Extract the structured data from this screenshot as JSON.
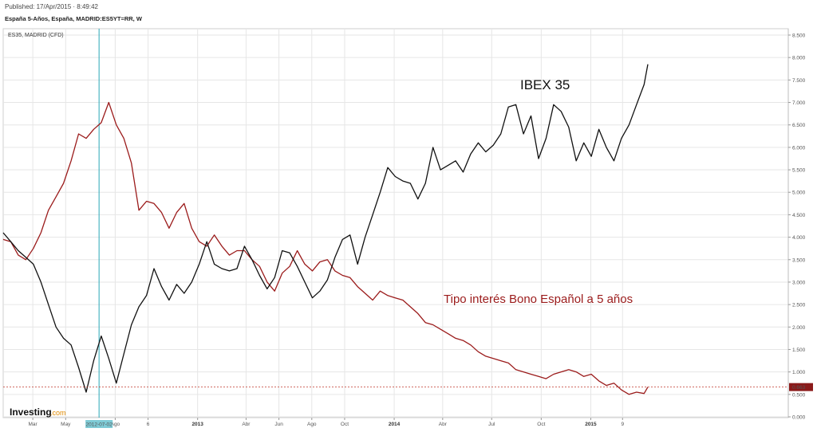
{
  "header": {
    "published": "Published: 17/Apr/2015 · 8:49:42",
    "instrument": "España 5-Años, España, MADRID:ES5YT=RR, W"
  },
  "overlay_label": "ES35, MADRID (CFD)",
  "brand": {
    "name": "Investing",
    "suffix": ".com"
  },
  "colors": {
    "ibex": "#111111",
    "bond": "#9b1b1b",
    "crosshair": "#29a8b8",
    "current_line": "#c0392b",
    "grid": "#e6e6e6"
  },
  "chart_data": {
    "type": "line",
    "y_axis": {
      "min": 0,
      "max": 8.5,
      "ticks": [
        0,
        0.5,
        1,
        1.5,
        2,
        2.5,
        3,
        3.5,
        4,
        4.5,
        5,
        5.5,
        6,
        6.5,
        7,
        7.5,
        8,
        8.5
      ],
      "tick_labels": [
        "0.000",
        "0.500",
        "1.000",
        "1.500",
        "2.000",
        "2.500",
        "3.000",
        "3.500",
        "4.000",
        "4.500",
        "5.000",
        "5.500",
        "6.000",
        "6.500",
        "7.000",
        "7.500",
        "8.000",
        "8.500"
      ]
    },
    "x_axis": {
      "range": [
        "2012-01-06",
        "2015-04-17"
      ],
      "ticks": [
        {
          "date": "2012-03-01",
          "label": "Mar",
          "bold": false
        },
        {
          "date": "2012-05-01",
          "label": "May",
          "bold": false
        },
        {
          "date": "2012-08-01",
          "label": "Ago",
          "bold": false
        },
        {
          "date": "2012-10-01",
          "label": "6",
          "bold": false
        },
        {
          "date": "2013-01-01",
          "label": "2013",
          "bold": true
        },
        {
          "date": "2013-04-01",
          "label": "Abr",
          "bold": false
        },
        {
          "date": "2013-06-01",
          "label": "Jun",
          "bold": false
        },
        {
          "date": "2013-08-01",
          "label": "Ago",
          "bold": false
        },
        {
          "date": "2013-10-01",
          "label": "Oct",
          "bold": false
        },
        {
          "date": "2014-01-01",
          "label": "2014",
          "bold": true
        },
        {
          "date": "2014-04-01",
          "label": "Abr",
          "bold": false
        },
        {
          "date": "2014-07-01",
          "label": "Jul",
          "bold": false
        },
        {
          "date": "2014-10-01",
          "label": "Oct",
          "bold": false
        },
        {
          "date": "2015-01-01",
          "label": "2015",
          "bold": true
        },
        {
          "date": "2015-03-01",
          "label": "9",
          "bold": false
        }
      ]
    },
    "grid": true,
    "crosshair": {
      "date": "2012-07-02",
      "label": "2012-07-02"
    },
    "current_value": {
      "value": 0.663,
      "label": "0.663"
    },
    "annotations": [
      {
        "text": "IBEX 35",
        "series": "ibex"
      },
      {
        "text": "Tipo interés Bono Español a 5 años",
        "series": "bond"
      }
    ],
    "series": [
      {
        "key": "bond",
        "name": "España 5-Años",
        "points": [
          [
            "2012-01-06",
            3.95
          ],
          [
            "2012-01-20",
            3.9
          ],
          [
            "2012-02-03",
            3.6
          ],
          [
            "2012-02-17",
            3.5
          ],
          [
            "2012-03-02",
            3.75
          ],
          [
            "2012-03-16",
            4.1
          ],
          [
            "2012-03-30",
            4.6
          ],
          [
            "2012-04-13",
            4.9
          ],
          [
            "2012-04-27",
            5.2
          ],
          [
            "2012-05-11",
            5.7
          ],
          [
            "2012-05-25",
            6.3
          ],
          [
            "2012-06-08",
            6.2
          ],
          [
            "2012-06-22",
            6.4
          ],
          [
            "2012-07-06",
            6.55
          ],
          [
            "2012-07-20",
            7.0
          ],
          [
            "2012-08-03",
            6.5
          ],
          [
            "2012-08-17",
            6.2
          ],
          [
            "2012-08-31",
            5.65
          ],
          [
            "2012-09-14",
            4.6
          ],
          [
            "2012-09-28",
            4.8
          ],
          [
            "2012-10-12",
            4.75
          ],
          [
            "2012-10-26",
            4.55
          ],
          [
            "2012-11-09",
            4.2
          ],
          [
            "2012-11-23",
            4.55
          ],
          [
            "2012-12-07",
            4.75
          ],
          [
            "2012-12-21",
            4.2
          ],
          [
            "2013-01-04",
            3.9
          ],
          [
            "2013-01-18",
            3.8
          ],
          [
            "2013-02-01",
            4.05
          ],
          [
            "2013-02-15",
            3.8
          ],
          [
            "2013-03-01",
            3.6
          ],
          [
            "2013-03-15",
            3.7
          ],
          [
            "2013-03-29",
            3.7
          ],
          [
            "2013-04-12",
            3.5
          ],
          [
            "2013-04-26",
            3.35
          ],
          [
            "2013-05-10",
            3.0
          ],
          [
            "2013-05-24",
            2.8
          ],
          [
            "2013-06-07",
            3.2
          ],
          [
            "2013-06-21",
            3.35
          ],
          [
            "2013-07-05",
            3.7
          ],
          [
            "2013-07-19",
            3.4
          ],
          [
            "2013-08-02",
            3.25
          ],
          [
            "2013-08-16",
            3.45
          ],
          [
            "2013-08-30",
            3.5
          ],
          [
            "2013-09-13",
            3.25
          ],
          [
            "2013-09-27",
            3.15
          ],
          [
            "2013-10-11",
            3.1
          ],
          [
            "2013-10-25",
            2.9
          ],
          [
            "2013-11-08",
            2.75
          ],
          [
            "2013-11-22",
            2.6
          ],
          [
            "2013-12-06",
            2.8
          ],
          [
            "2013-12-20",
            2.7
          ],
          [
            "2014-01-03",
            2.65
          ],
          [
            "2014-01-17",
            2.6
          ],
          [
            "2014-01-31",
            2.45
          ],
          [
            "2014-02-14",
            2.3
          ],
          [
            "2014-02-28",
            2.1
          ],
          [
            "2014-03-14",
            2.05
          ],
          [
            "2014-03-28",
            1.95
          ],
          [
            "2014-04-11",
            1.85
          ],
          [
            "2014-04-25",
            1.75
          ],
          [
            "2014-05-09",
            1.7
          ],
          [
            "2014-05-23",
            1.6
          ],
          [
            "2014-06-06",
            1.45
          ],
          [
            "2014-06-20",
            1.35
          ],
          [
            "2014-07-04",
            1.3
          ],
          [
            "2014-07-18",
            1.25
          ],
          [
            "2014-08-01",
            1.2
          ],
          [
            "2014-08-15",
            1.05
          ],
          [
            "2014-08-29",
            1.0
          ],
          [
            "2014-09-12",
            0.95
          ],
          [
            "2014-09-26",
            0.9
          ],
          [
            "2014-10-10",
            0.85
          ],
          [
            "2014-10-24",
            0.95
          ],
          [
            "2014-11-07",
            1.0
          ],
          [
            "2014-11-21",
            1.05
          ],
          [
            "2014-12-05",
            1.0
          ],
          [
            "2014-12-19",
            0.9
          ],
          [
            "2015-01-02",
            0.95
          ],
          [
            "2015-01-16",
            0.8
          ],
          [
            "2015-01-30",
            0.7
          ],
          [
            "2015-02-13",
            0.75
          ],
          [
            "2015-02-27",
            0.6
          ],
          [
            "2015-03-13",
            0.5
          ],
          [
            "2015-03-27",
            0.55
          ],
          [
            "2015-04-10",
            0.52
          ],
          [
            "2015-04-17",
            0.663
          ]
        ]
      },
      {
        "key": "ibex",
        "name": "IBEX 35",
        "points": [
          [
            "2012-01-06",
            4.1
          ],
          [
            "2012-01-20",
            3.9
          ],
          [
            "2012-02-03",
            3.7
          ],
          [
            "2012-02-17",
            3.55
          ],
          [
            "2012-03-02",
            3.4
          ],
          [
            "2012-03-16",
            3.0
          ],
          [
            "2012-03-30",
            2.5
          ],
          [
            "2012-04-13",
            2.0
          ],
          [
            "2012-04-27",
            1.75
          ],
          [
            "2012-05-11",
            1.6
          ],
          [
            "2012-05-25",
            1.1
          ],
          [
            "2012-06-08",
            0.55
          ],
          [
            "2012-06-22",
            1.25
          ],
          [
            "2012-07-06",
            1.8
          ],
          [
            "2012-07-20",
            1.3
          ],
          [
            "2012-08-03",
            0.75
          ],
          [
            "2012-08-17",
            1.4
          ],
          [
            "2012-08-31",
            2.05
          ],
          [
            "2012-09-14",
            2.45
          ],
          [
            "2012-09-28",
            2.7
          ],
          [
            "2012-10-12",
            3.3
          ],
          [
            "2012-10-26",
            2.9
          ],
          [
            "2012-11-09",
            2.6
          ],
          [
            "2012-11-23",
            2.95
          ],
          [
            "2012-12-07",
            2.75
          ],
          [
            "2012-12-21",
            3.0
          ],
          [
            "2013-01-04",
            3.4
          ],
          [
            "2013-01-18",
            3.9
          ],
          [
            "2013-02-01",
            3.4
          ],
          [
            "2013-02-15",
            3.3
          ],
          [
            "2013-03-01",
            3.25
          ],
          [
            "2013-03-15",
            3.3
          ],
          [
            "2013-03-29",
            3.8
          ],
          [
            "2013-04-12",
            3.5
          ],
          [
            "2013-04-26",
            3.15
          ],
          [
            "2013-05-10",
            2.85
          ],
          [
            "2013-05-24",
            3.1
          ],
          [
            "2013-06-07",
            3.7
          ],
          [
            "2013-06-21",
            3.65
          ],
          [
            "2013-07-05",
            3.35
          ],
          [
            "2013-07-19",
            3.0
          ],
          [
            "2013-08-02",
            2.65
          ],
          [
            "2013-08-16",
            2.8
          ],
          [
            "2013-08-30",
            3.05
          ],
          [
            "2013-09-13",
            3.55
          ],
          [
            "2013-09-27",
            3.95
          ],
          [
            "2013-10-11",
            4.05
          ],
          [
            "2013-10-25",
            3.4
          ],
          [
            "2013-11-08",
            4.0
          ],
          [
            "2013-11-22",
            4.5
          ],
          [
            "2013-12-06",
            5.0
          ],
          [
            "2013-12-20",
            5.55
          ],
          [
            "2014-01-03",
            5.35
          ],
          [
            "2014-01-17",
            5.25
          ],
          [
            "2014-01-31",
            5.2
          ],
          [
            "2014-02-14",
            4.85
          ],
          [
            "2014-02-28",
            5.2
          ],
          [
            "2014-03-14",
            6.0
          ],
          [
            "2014-03-28",
            5.5
          ],
          [
            "2014-04-11",
            5.6
          ],
          [
            "2014-04-25",
            5.7
          ],
          [
            "2014-05-09",
            5.45
          ],
          [
            "2014-05-23",
            5.85
          ],
          [
            "2014-06-06",
            6.1
          ],
          [
            "2014-06-20",
            5.9
          ],
          [
            "2014-07-04",
            6.05
          ],
          [
            "2014-07-18",
            6.3
          ],
          [
            "2014-08-01",
            6.9
          ],
          [
            "2014-08-15",
            6.95
          ],
          [
            "2014-08-29",
            6.3
          ],
          [
            "2014-09-12",
            6.7
          ],
          [
            "2014-09-26",
            5.75
          ],
          [
            "2014-10-10",
            6.2
          ],
          [
            "2014-10-24",
            6.95
          ],
          [
            "2014-11-07",
            6.8
          ],
          [
            "2014-11-21",
            6.45
          ],
          [
            "2014-12-05",
            5.7
          ],
          [
            "2014-12-19",
            6.1
          ],
          [
            "2015-01-02",
            5.8
          ],
          [
            "2015-01-16",
            6.4
          ],
          [
            "2015-01-30",
            6.0
          ],
          [
            "2015-02-13",
            5.7
          ],
          [
            "2015-02-27",
            6.2
          ],
          [
            "2015-03-13",
            6.5
          ],
          [
            "2015-03-27",
            6.95
          ],
          [
            "2015-04-10",
            7.4
          ],
          [
            "2015-04-17",
            7.85
          ]
        ]
      }
    ]
  }
}
